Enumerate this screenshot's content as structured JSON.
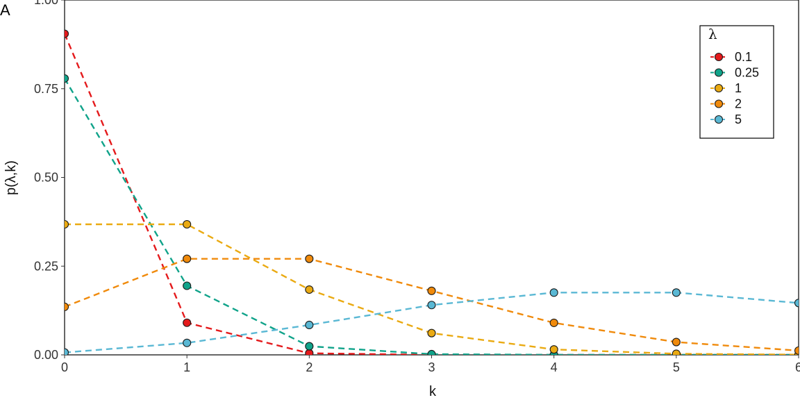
{
  "panel_tag": "A",
  "chart_data": {
    "type": "line",
    "xlabel": "k",
    "ylabel": "p(λ,k)",
    "x": [
      0,
      1,
      2,
      3,
      4,
      5,
      6
    ],
    "xlim": [
      0,
      6
    ],
    "ylim": [
      0,
      1
    ],
    "x_ticks": [
      "0",
      "1",
      "2",
      "3",
      "4",
      "5",
      "6"
    ],
    "y_ticks": [
      "0.00",
      "0.25",
      "0.50",
      "0.75",
      "1.00"
    ],
    "grid": false,
    "line_style": "dashed",
    "legend": {
      "title": "λ",
      "placement": "top-right"
    },
    "series": [
      {
        "name": "0.1",
        "color": "#e41a1c",
        "values": [
          0.9048,
          0.0905,
          0.0045,
          0.0002,
          0.0,
          0.0,
          0.0
        ]
      },
      {
        "name": "0.25",
        "color": "#10a38a",
        "values": [
          0.7788,
          0.1947,
          0.0243,
          0.002,
          0.0001,
          0.0,
          0.0
        ]
      },
      {
        "name": "1",
        "color": "#eaaa12",
        "values": [
          0.3679,
          0.3679,
          0.1839,
          0.0613,
          0.0153,
          0.0031,
          0.0005
        ]
      },
      {
        "name": "2",
        "color": "#f08a0b",
        "values": [
          0.1353,
          0.2707,
          0.2707,
          0.1804,
          0.0902,
          0.0361,
          0.012
        ]
      },
      {
        "name": "5",
        "color": "#5ab8d4",
        "values": [
          0.0067,
          0.0337,
          0.0842,
          0.1404,
          0.1755,
          0.1755,
          0.1462
        ]
      }
    ]
  }
}
